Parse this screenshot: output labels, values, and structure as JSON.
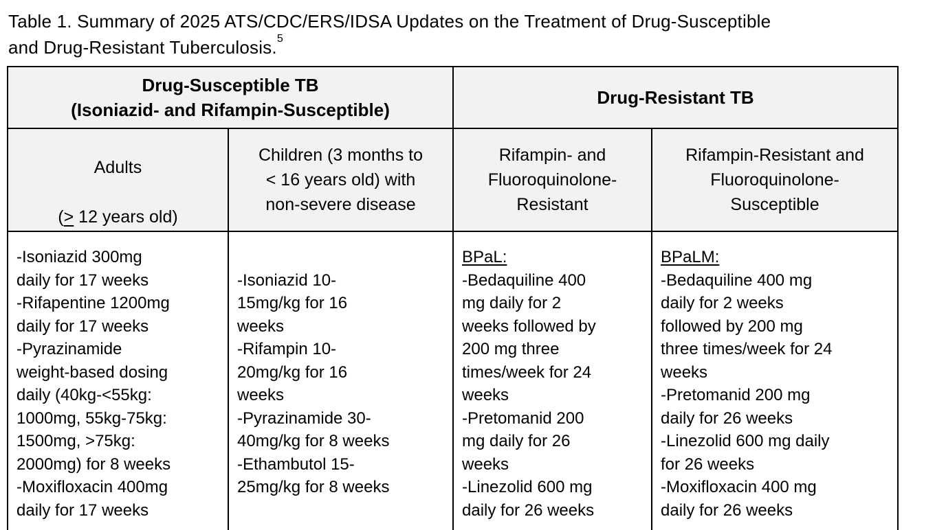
{
  "title": {
    "line1": "Table 1. Summary of 2025 ATS/CDC/ERS/IDSA Updates on the Treatment of Drug-Susceptible",
    "line2": "and Drug-Resistant Tuberculosis.",
    "footnote_ref": "5"
  },
  "colors": {
    "page_bg": "#ffffff",
    "header_cell_bg": "#f2f2f2",
    "border": "#000000",
    "text": "#000000"
  },
  "table": {
    "group_headers": [
      {
        "label": "Drug-Susceptible TB\n(Isoniazid- and Rifampin-Susceptible)"
      },
      {
        "label": "Drug-Resistant TB"
      }
    ],
    "column_headers": [
      {
        "line1": "Adults",
        "paren_open": "(",
        "gte_symbol": ">",
        "rest": " 12 years old)"
      },
      {
        "label": "Children (3 months to\n< 16 years old) with\nnon-severe disease"
      },
      {
        "label": "Rifampin- and\nFluoroquinolone-\nResistant"
      },
      {
        "label": "Rifampin-Resistant and\nFluoroquinolone-\nSusceptible"
      }
    ],
    "body_cells": [
      {
        "text": "-Isoniazid 300mg\ndaily for 17 weeks\n-Rifapentine 1200mg\ndaily for 17 weeks\n-Pyrazinamide\nweight-based dosing\ndaily (40kg-<55kg:\n1000mg, 55kg-75kg:\n1500mg, >75kg:\n2000mg) for 8 weeks\n-Moxifloxacin 400mg\ndaily for 17 weeks"
      },
      {
        "text": "-Isoniazid 10-\n15mg/kg for 16\nweeks\n-Rifampin 10-\n20mg/kg for 16\nweeks\n-Pyrazinamide 30-\n40mg/kg for 8 weeks\n-Ethambutol 15-\n25mg/kg for 8 weeks"
      },
      {
        "heading": "BPaL:",
        "text": "-Bedaquiline 400\nmg daily for 2\nweeks followed by\n200 mg three\ntimes/week for 24\nweeks\n-Pretomanid 200\nmg daily for 26\nweeks\n-Linezolid 600 mg\ndaily for 26 weeks"
      },
      {
        "heading": "BPaLM:",
        "text": "-Bedaquiline 400 mg\ndaily for 2 weeks\nfollowed by 200 mg\nthree times/week for 24\nweeks\n-Pretomanid 200 mg\ndaily for 26 weeks\n-Linezolid 600 mg daily\nfor 26 weeks\n-Moxifloxacin 400 mg\ndaily for 26 weeks"
      }
    ]
  }
}
